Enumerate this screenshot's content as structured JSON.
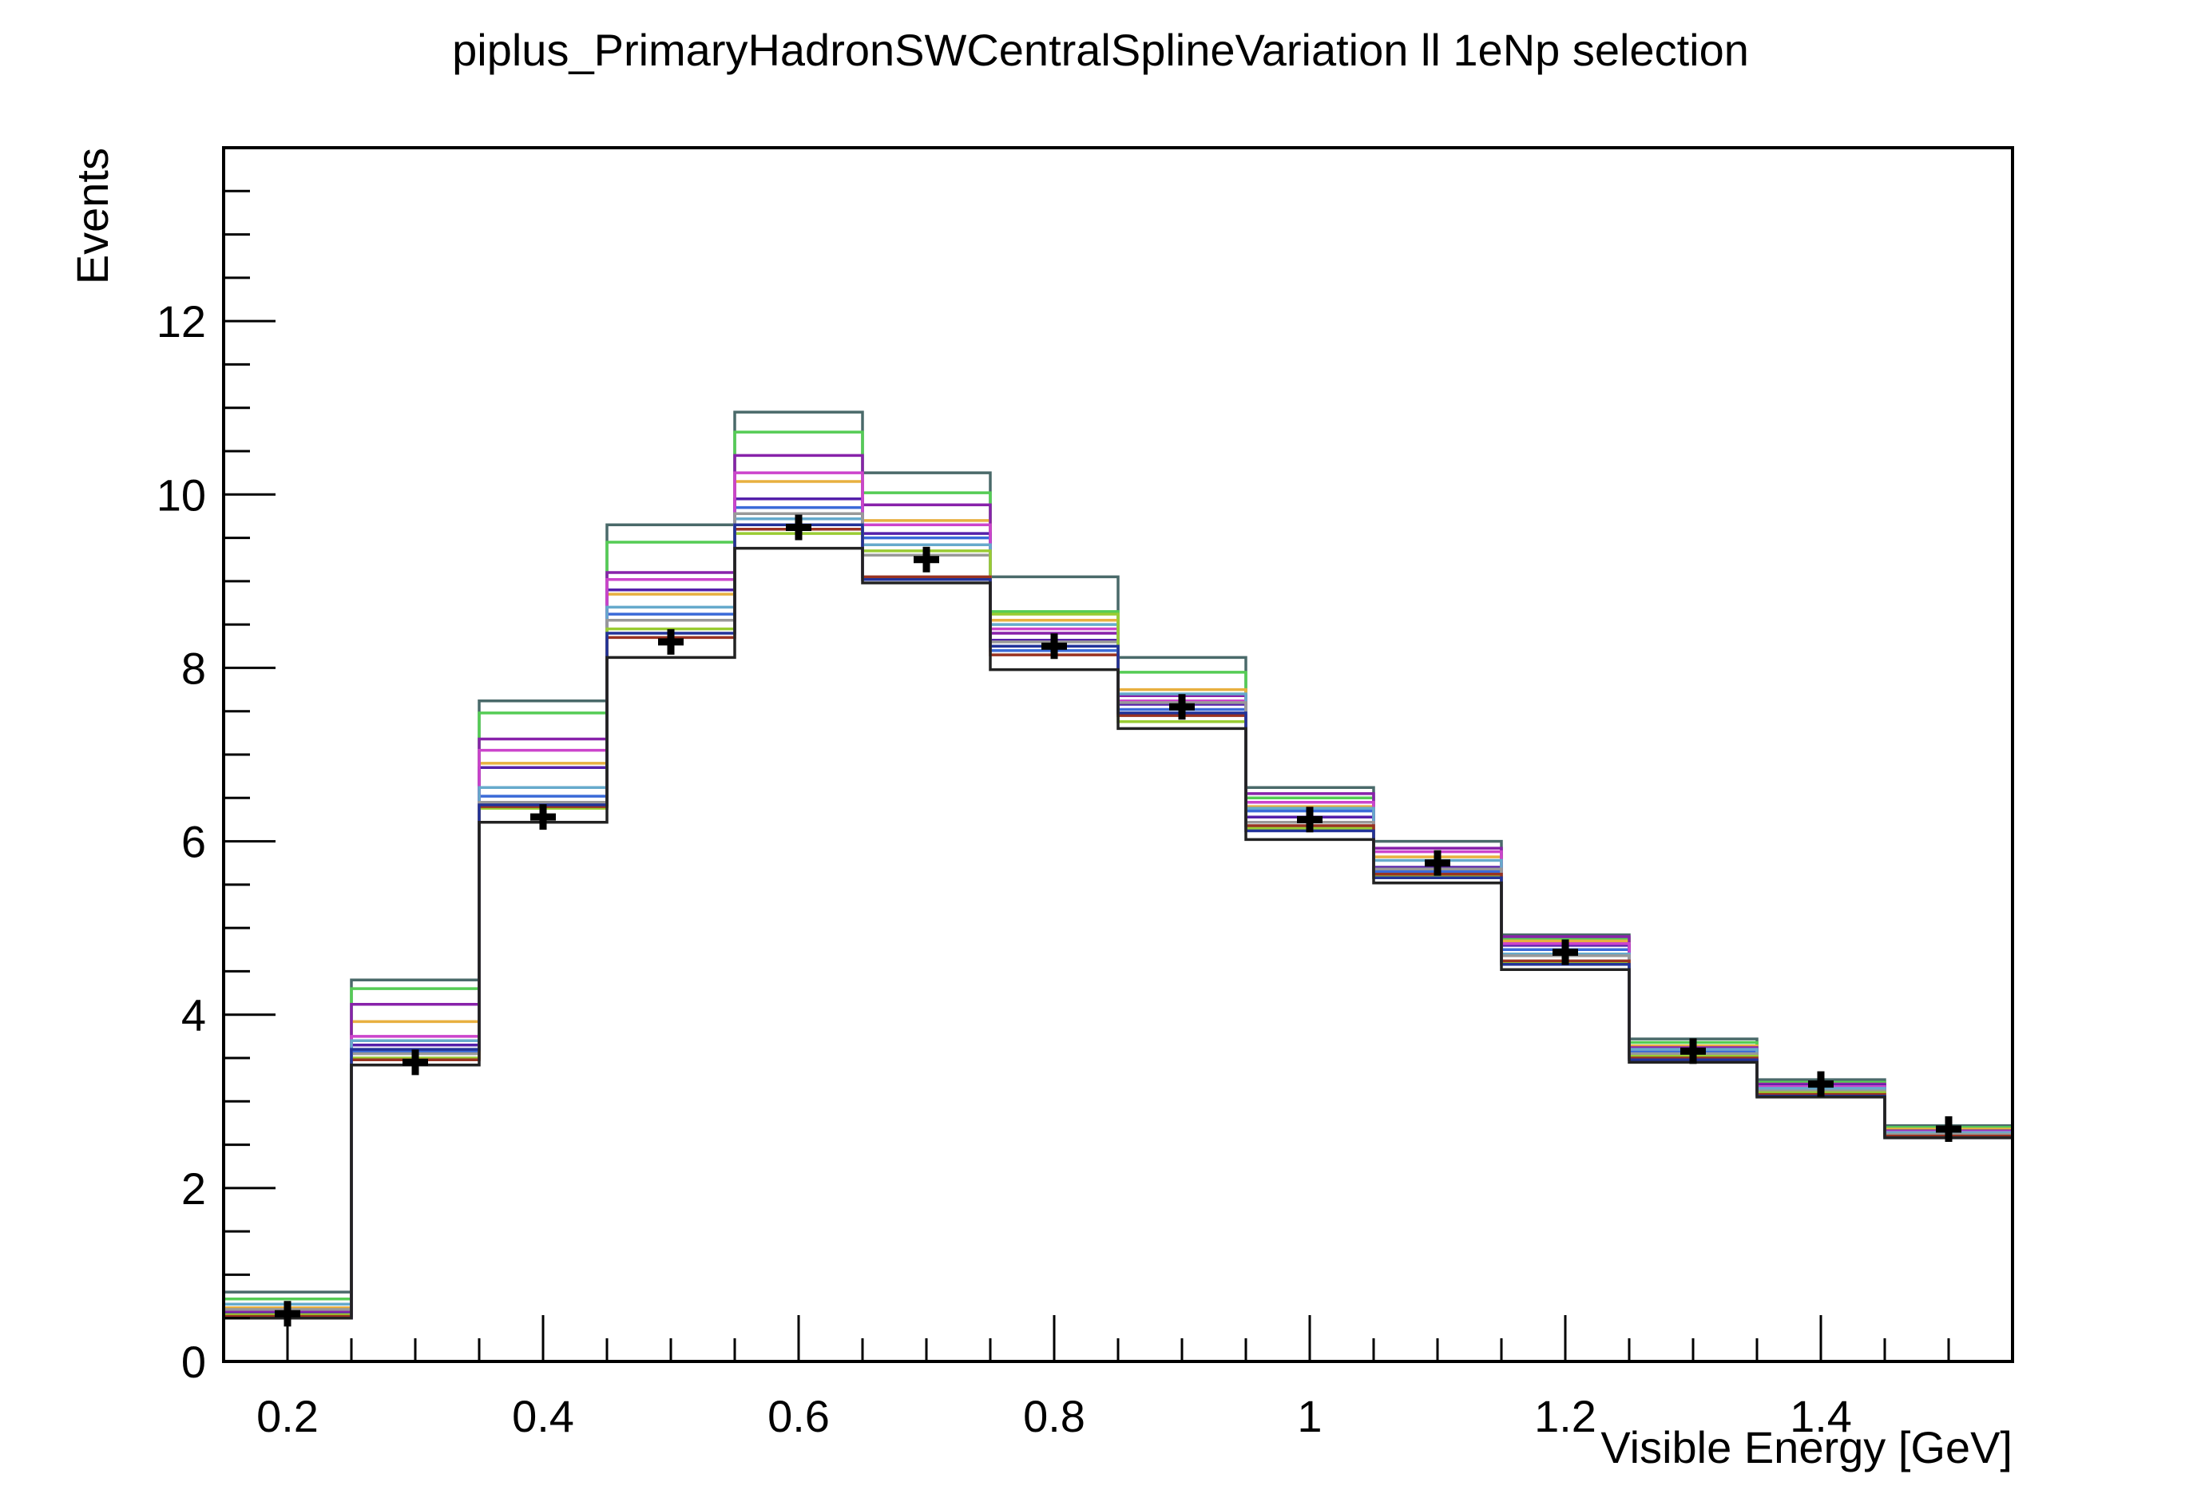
{
  "chart_data": {
    "type": "histogram",
    "title": "piplus_PrimaryHadronSWCentralSplineVariation ll 1eNp selection",
    "xlabel": "Visible Energy [GeV]",
    "ylabel": "Events",
    "xlim": [
      0.15,
      1.55
    ],
    "ylim": [
      0,
      14
    ],
    "grid": false,
    "x_ticks": [
      0.2,
      0.4,
      0.6,
      0.8,
      1.0,
      1.2,
      1.4
    ],
    "x_tick_labels": [
      "0.2",
      "0.4",
      "0.6",
      "0.8",
      "1",
      "1.2",
      "1.4"
    ],
    "y_ticks": [
      0,
      2,
      4,
      6,
      8,
      10,
      12
    ],
    "y_tick_labels": [
      "0",
      "2",
      "4",
      "6",
      "8",
      "10",
      "12"
    ],
    "bin_edges": [
      0.15,
      0.25,
      0.35,
      0.45,
      0.55,
      0.65,
      0.75,
      0.85,
      0.95,
      1.05,
      1.15,
      1.25,
      1.35,
      1.45,
      1.55
    ],
    "central_values": {
      "x": [
        0.2,
        0.3,
        0.4,
        0.5,
        0.6,
        0.7,
        0.8,
        0.9,
        1.0,
        1.1,
        1.2,
        1.3,
        1.4,
        1.5
      ],
      "y": [
        0.55,
        3.45,
        6.28,
        8.3,
        9.62,
        9.25,
        8.25,
        7.55,
        6.25,
        5.75,
        4.72,
        3.58,
        3.2,
        2.68
      ]
    },
    "variations": [
      {
        "color": "#4a6a6a",
        "values": [
          0.8,
          4.4,
          7.62,
          9.65,
          10.95,
          10.25,
          9.05,
          8.12,
          6.62,
          6.0,
          4.92,
          3.72,
          3.25,
          2.72
        ]
      },
      {
        "color": "#55cc55",
        "values": [
          0.72,
          4.3,
          7.48,
          9.45,
          10.72,
          10.02,
          8.65,
          7.95,
          6.5,
          5.92,
          4.88,
          3.68,
          3.22,
          2.7
        ]
      },
      {
        "color": "#e8b040",
        "values": [
          0.62,
          3.92,
          6.9,
          8.85,
          10.15,
          9.7,
          8.55,
          7.75,
          6.4,
          5.82,
          4.85,
          3.64,
          3.2,
          2.68
        ]
      },
      {
        "color": "#8822aa",
        "values": [
          0.58,
          4.12,
          7.18,
          9.1,
          10.45,
          9.88,
          8.4,
          7.68,
          6.55,
          5.92,
          4.9,
          3.62,
          3.2,
          2.66
        ]
      },
      {
        "color": "#5520aa",
        "values": [
          0.55,
          3.65,
          6.85,
          8.9,
          9.95,
          9.55,
          8.32,
          7.58,
          6.28,
          5.7,
          4.8,
          3.6,
          3.18,
          2.66
        ]
      },
      {
        "color": "#3a6ad8",
        "values": [
          0.52,
          3.58,
          6.52,
          8.62,
          9.85,
          9.5,
          8.2,
          7.52,
          6.35,
          5.65,
          4.75,
          3.57,
          3.15,
          2.64
        ]
      },
      {
        "color": "#cc44cc",
        "values": [
          0.5,
          3.75,
          7.05,
          9.02,
          10.25,
          9.65,
          8.45,
          7.62,
          6.45,
          5.88,
          4.82,
          3.6,
          3.17,
          2.65
        ]
      },
      {
        "color": "#66aacc",
        "values": [
          0.66,
          3.7,
          6.62,
          8.7,
          9.72,
          9.42,
          8.5,
          7.7,
          6.38,
          5.78,
          4.7,
          3.6,
          3.15,
          2.64
        ]
      },
      {
        "color": "#999999",
        "values": [
          0.6,
          3.55,
          6.45,
          8.55,
          9.78,
          9.3,
          8.3,
          7.6,
          6.22,
          5.68,
          4.68,
          3.55,
          3.12,
          2.62
        ]
      },
      {
        "color": "#99cc33",
        "values": [
          0.54,
          3.5,
          6.38,
          8.45,
          9.55,
          9.35,
          8.62,
          7.38,
          6.15,
          5.6,
          4.6,
          3.52,
          3.1,
          2.6
        ]
      },
      {
        "color": "#993322",
        "values": [
          0.52,
          3.48,
          6.4,
          8.35,
          9.6,
          9.05,
          8.15,
          7.45,
          6.18,
          5.62,
          4.62,
          3.5,
          3.08,
          2.6
        ]
      },
      {
        "color": "#223399",
        "values": [
          0.5,
          3.6,
          6.42,
          8.4,
          9.65,
          9.02,
          8.25,
          7.48,
          6.12,
          5.58,
          4.58,
          3.48,
          3.06,
          2.58
        ]
      },
      {
        "color": "#222222",
        "values": [
          0.5,
          3.42,
          6.22,
          8.12,
          9.38,
          8.98,
          7.98,
          7.3,
          6.02,
          5.52,
          4.52,
          3.45,
          3.05,
          2.58
        ]
      }
    ]
  }
}
